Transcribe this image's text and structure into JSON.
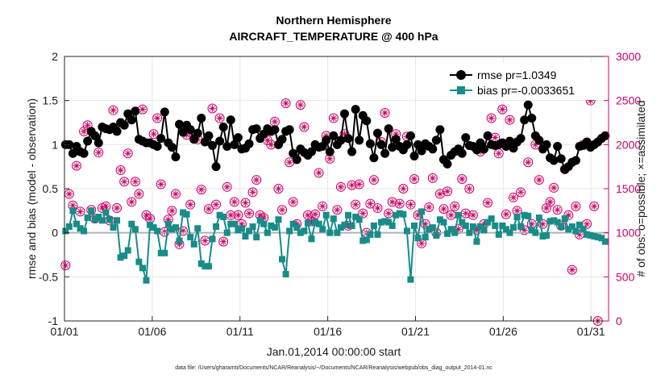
{
  "chart_data": {
    "type": "line",
    "title": "Northern Hemisphere",
    "subtitle": "AIRCRAFT_TEMPERATURE @ 400 hPa",
    "xlabel": "Jan.01,2014 00:00:00 start",
    "ylabel": "rmse and bias (model - observation)",
    "y2label": "# of obs: o=possible; ×=assimilated",
    "footer": "data file: /Users/gharamti/Documents/NCAR/Reanalysis/~/Documents/NCAR/Reanalysis/webpub/obs_diag_output_2014-01.nc",
    "x_ticks": [
      "01/01",
      "01/06",
      "01/11",
      "01/16",
      "01/21",
      "01/26",
      "01/31"
    ],
    "x_tick_days": [
      1,
      6,
      11,
      16,
      21,
      26,
      31
    ],
    "xlim": [
      1,
      32
    ],
    "ylim": [
      -1,
      2
    ],
    "y_ticks": [
      -1,
      -0.5,
      0,
      0.5,
      1,
      1.5,
      2
    ],
    "y_tick_labels": [
      "-1",
      "-0.5",
      "0",
      "0.5",
      "1",
      "1.5",
      "2"
    ],
    "y2lim": [
      0,
      3000
    ],
    "y2_ticks": [
      0,
      500,
      1000,
      1500,
      2000,
      2500,
      3000
    ],
    "grid": true,
    "zero_line": 0,
    "legend_position": "top-right",
    "colors": {
      "rmse": "#000000",
      "bias": "#178c88",
      "obs": "#cc0066",
      "zero": "#b3b3b3",
      "grid": "#e6e6e6"
    },
    "x_step_days": 0.25,
    "series": [
      {
        "name": "rmse pr=1.0349",
        "values": [
          1.0,
          1.0,
          0.9,
          0.98,
          0.92,
          0.9,
          1.04,
          1.15,
          1.1,
          1.02,
          1.2,
          1.18,
          1.17,
          1.2,
          1.15,
          1.25,
          1.22,
          1.35,
          1.28,
          1.38,
          1.06,
          1.04,
          1.02,
          1.02,
          1.0,
          0.98,
          1.07,
          1.37,
          1.02,
          0.97,
          0.86,
          1.23,
          1.14,
          1.22,
          1.17,
          1.06,
          1.13,
          1.3,
          1.03,
          1.1,
          0.99,
          0.75,
          1.04,
          1.2,
          0.98,
          1.28,
          1.0,
          1.08,
          0.95,
          0.96,
          1.01,
          1.17,
          1.18,
          1.07,
          1.12,
          1.18,
          1.15,
          1.17,
          1.0,
          1.06,
          1.15,
          1.17,
          0.9,
          0.83,
          0.95,
          0.91,
          0.88,
          0.92,
          1.0,
          0.97,
          0.98,
          1.05,
          0.92,
          1.1,
          1.0,
          1.05,
          1.35,
          1.07,
          0.92,
          1.4,
          1.05,
          1.33,
          1.27,
          1.01,
          0.85,
          1.13,
          1.0,
          0.9,
          1.18,
          0.97,
          1.06,
          0.98,
          0.94,
          1.0,
          1.1,
          0.87,
          1.0,
          0.93,
          1.01,
          0.98,
          0.95,
          1.05,
          1.17,
          0.83,
          0.78,
          0.88,
          0.92,
          0.95,
          0.9,
          1.08,
          0.99,
          0.98,
          0.94,
          1.02,
          0.95,
          1.1,
          1.0,
          0.99,
          1.0,
          1.02,
          0.98,
          1.04,
          0.96,
          1.03,
          1.07,
          1.28,
          1.45,
          1.3,
          1.1,
          1.05,
          0.95,
          1.0,
          0.85,
          0.82,
          0.98,
          0.84,
          0.72,
          0.75,
          0.8,
          0.82,
          0.98,
          0.99,
          1.03,
          0.97,
          1.0,
          1.03,
          1.07,
          1.1
        ]
      },
      {
        "name": "bias pr=-0.0033651",
        "values": [
          0.02,
          0.07,
          0.25,
          0.1,
          0.05,
          0.02,
          0.17,
          0.25,
          0.15,
          0.18,
          0.14,
          0.23,
          0.15,
          0.06,
          0.14,
          -0.28,
          -0.26,
          -0.2,
          0.1,
          0.04,
          -0.33,
          -0.4,
          -0.54,
          0.09,
          0.06,
          0.02,
          -0.23,
          -0.23,
          0.1,
          0.04,
          0.06,
          -0.09,
          0.23,
          0.21,
          -0.05,
          -0.13,
          0.05,
          -0.35,
          -0.38,
          -0.38,
          -0.07,
          0.07,
          0.2,
          0.18,
          0.0,
          0.1,
          0.1,
          0.03,
          0.05,
          -0.04,
          0.02,
          0.07,
          -0.05,
          0.14,
          0.1,
          0.0,
          0.08,
          0.06,
          0.15,
          -0.3,
          -0.47,
          0.02,
          0.1,
          0.06,
          0.0,
          0.02,
          0.11,
          -0.07,
          0.12,
          0.1,
          0.04,
          0.2,
          0.0,
          0.16,
          0.0,
          0.06,
          0.09,
          0.2,
          0.08,
          0.18,
          0.15,
          -0.09,
          -0.08,
          -0.02,
          0.08,
          -0.02,
          0.12,
          0.13,
          0.12,
          0.08,
          0.2,
          0.22,
          0.21,
          0.02,
          -0.53,
          0.08,
          -0.06,
          0.24,
          -0.05,
          0.04,
          0.06,
          -0.03,
          0.15,
          0.12,
          -0.01,
          0.04,
          0.0,
          0.2,
          0.12,
          0.08,
          0.0,
          0.07,
          -0.1,
          0.07,
          0.03,
          0.12,
          0.16,
          0.08,
          -0.02,
          0.08,
          0.04,
          0.0,
          0.06,
          0.18,
          0.07,
          0.2,
          0.19,
          0.03,
          0.0,
          0.17,
          -0.04,
          -0.03,
          0.13,
          0.14,
          0.12,
          0.07,
          0.16,
          0.04,
          0.07,
          0.02,
          0.09,
          0.04,
          -0.02,
          -0.03,
          -0.04,
          -0.05,
          -0.06,
          -0.1
        ]
      }
    ],
    "obs_counts_possible": [
      630,
      1440,
      1310,
      1760,
      1240,
      2150,
      2220,
      1260,
      1160,
      1910,
      1280,
      1300,
      1140,
      2390,
      1280,
      1710,
      1580,
      1900,
      1350,
      1580,
      1440,
      2400,
      1200,
      1160,
      2120,
      2300,
      1550,
      1010,
      1150,
      1250,
      1440,
      870,
      1020,
      2110,
      1320,
      2100,
      2060,
      1490,
      910,
      1270,
      2410,
      1320,
      2300,
      900,
      1520,
      1200,
      1350,
      1200,
      1100,
      1340,
      1220,
      1460,
      1600,
      1200,
      1170,
      2050,
      2000,
      2260,
      1500,
      1260,
      2470,
      1800,
      1350,
      1100,
      2450,
      2200,
      1200,
      1130,
      1210,
      1680,
      1300,
      2100,
      1840,
      2300,
      1260,
      1520,
      2120,
      1080,
      1540,
      1320,
      1550,
      1220,
      1000,
      1330,
      1600,
      1280,
      2030,
      2360,
      1220,
      1350,
      2120,
      1330,
      1500,
      2090,
      1320,
      1610,
      1200,
      880,
      1100,
      1290,
      1620,
      1000,
      1440,
      1270,
      1470,
      1200,
      1300,
      1040,
      1610,
      1220,
      1500,
      1200,
      1030,
      1920,
      1100,
      1340,
      2300,
      2080,
      1900,
      2400,
      1210,
      2280,
      1400,
      1250,
      1460,
      1030,
      1800,
      1100,
      2000,
      1600,
      1100,
      1280,
      1350,
      1510,
      1260,
      1080,
      1720,
      1200,
      580,
      1300,
      980,
      2000,
      1100,
      2500,
      1300,
      0
    ],
    "obs_counts_assimilated": [
      630,
      1440,
      1310,
      1760,
      1240,
      2150,
      2220,
      1260,
      1160,
      1910,
      1280,
      1300,
      1140,
      2390,
      1280,
      1710,
      1580,
      1900,
      1350,
      1580,
      1440,
      2400,
      1200,
      1160,
      2120,
      2300,
      1550,
      1010,
      1150,
      1250,
      1440,
      870,
      1020,
      2110,
      1320,
      2100,
      2060,
      1490,
      910,
      1270,
      2410,
      1320,
      2300,
      900,
      1520,
      1200,
      1350,
      1200,
      1100,
      1340,
      1220,
      1460,
      1600,
      1200,
      1170,
      2050,
      2000,
      2260,
      1500,
      1260,
      2470,
      1800,
      1350,
      1100,
      2450,
      2200,
      1200,
      1130,
      1210,
      1680,
      1300,
      2100,
      1840,
      2300,
      1260,
      1520,
      2120,
      1080,
      1540,
      1320,
      1550,
      1220,
      1000,
      1330,
      1600,
      1280,
      2030,
      2360,
      1220,
      1350,
      2120,
      1330,
      1500,
      2090,
      1320,
      1610,
      1200,
      880,
      1100,
      1290,
      1620,
      1000,
      1440,
      1270,
      1470,
      1200,
      1300,
      1040,
      1610,
      1220,
      1500,
      1200,
      1030,
      1920,
      1100,
      1340,
      2300,
      2080,
      1900,
      2400,
      1210,
      2280,
      1400,
      1250,
      1460,
      1030,
      1800,
      1100,
      2000,
      1600,
      1100,
      1280,
      1350,
      1510,
      1260,
      1080,
      1720,
      1200,
      580,
      1300,
      980,
      2000,
      1100,
      2500,
      1300,
      0
    ]
  }
}
